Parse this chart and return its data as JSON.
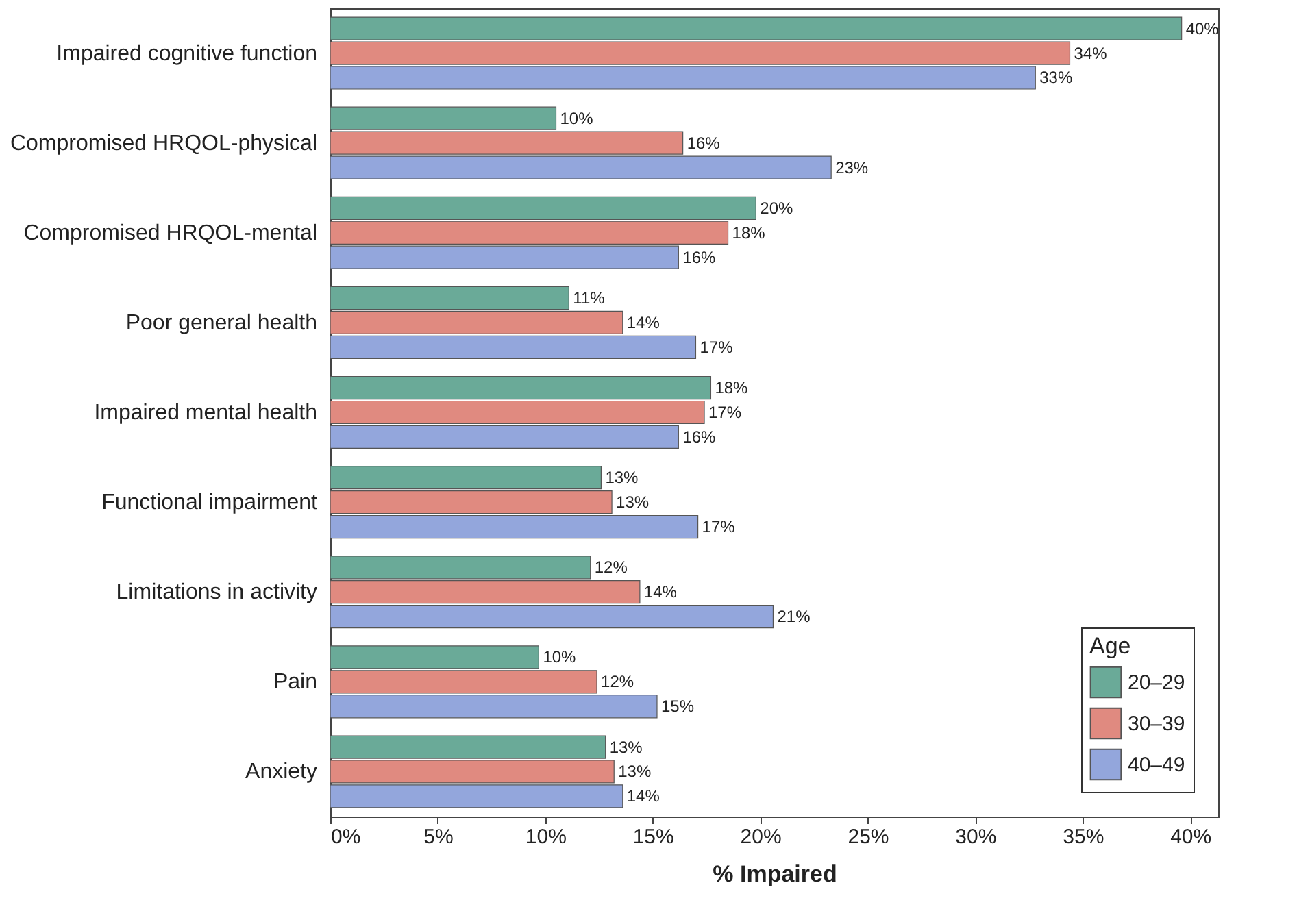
{
  "chart_data": {
    "type": "bar",
    "orientation": "horizontal",
    "xlabel": "% Impaired",
    "legend_title": "Age",
    "legend": "bottom right",
    "grid": false,
    "categories": [
      "Impaired cognitive function",
      "Compromised HRQOL-physical",
      "Compromised HRQOL-mental",
      "Poor general health",
      "Impaired mental health",
      "Functional impairment",
      "Limitations in activity",
      "Pain",
      "Anxiety"
    ],
    "xlim": [
      0,
      41.3
    ],
    "xticks": [
      {
        "value": 0,
        "label": "0%"
      },
      {
        "value": 5,
        "label": "5%"
      },
      {
        "value": 10,
        "label": "10%"
      },
      {
        "value": 15,
        "label": "15%"
      },
      {
        "value": 20,
        "label": "20%"
      },
      {
        "value": 25,
        "label": "25%"
      },
      {
        "value": 30,
        "label": "30%"
      },
      {
        "value": 35,
        "label": "35%"
      },
      {
        "value": 40,
        "label": "40%"
      }
    ],
    "series": [
      {
        "name": "20–29",
        "color": "#6aaa98",
        "values": [
          39.6,
          10.5,
          19.8,
          11.1,
          17.7,
          12.6,
          12.1,
          9.7,
          12.8
        ],
        "value_labels": [
          "40%",
          "10%",
          "20%",
          "11%",
          "18%",
          "13%",
          "12%",
          "10%",
          "13%"
        ]
      },
      {
        "name": "30–39",
        "color": "#e08a80",
        "values": [
          34.4,
          16.4,
          18.5,
          13.6,
          17.4,
          13.1,
          14.4,
          12.4,
          13.2
        ],
        "value_labels": [
          "34%",
          "16%",
          "18%",
          "14%",
          "17%",
          "13%",
          "14%",
          "12%",
          "13%"
        ]
      },
      {
        "name": "40–49",
        "color": "#93a6dc",
        "values": [
          32.8,
          23.3,
          16.2,
          17.0,
          16.2,
          17.1,
          20.6,
          15.2,
          13.6
        ],
        "value_labels": [
          "33%",
          "23%",
          "16%",
          "17%",
          "16%",
          "17%",
          "21%",
          "15%",
          "14%"
        ]
      }
    ]
  }
}
